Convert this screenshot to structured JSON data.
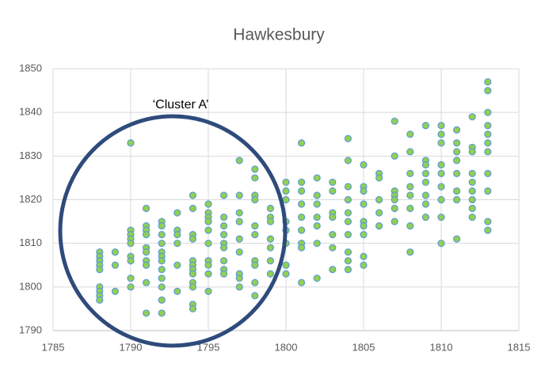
{
  "chart_data": {
    "type": "scatter",
    "title": "Hawkesbury",
    "annotation": "‘Cluster A’",
    "x": [
      1788,
      1788,
      1788,
      1788,
      1788,
      1788,
      1788,
      1788,
      1788,
      1789,
      1789,
      1789,
      1790,
      1790,
      1790,
      1790,
      1790,
      1790,
      1790,
      1790,
      1790,
      1791,
      1791,
      1791,
      1791,
      1791,
      1791,
      1791,
      1791,
      1791,
      1791,
      1792,
      1792,
      1792,
      1792,
      1792,
      1792,
      1792,
      1792,
      1792,
      1792,
      1792,
      1792,
      1793,
      1793,
      1793,
      1793,
      1793,
      1793,
      1794,
      1794,
      1794,
      1794,
      1794,
      1794,
      1794,
      1794,
      1794,
      1794,
      1794,
      1794,
      1795,
      1795,
      1795,
      1795,
      1795,
      1795,
      1795,
      1795,
      1795,
      1795,
      1796,
      1796,
      1796,
      1796,
      1796,
      1796,
      1796,
      1796,
      1796,
      1797,
      1797,
      1797,
      1797,
      1797,
      1797,
      1797,
      1797,
      1797,
      1798,
      1798,
      1798,
      1798,
      1798,
      1798,
      1798,
      1798,
      1798,
      1798,
      1799,
      1799,
      1799,
      1799,
      1799,
      1799,
      1799,
      1800,
      1800,
      1800,
      1800,
      1800,
      1800,
      1800,
      1800,
      1801,
      1801,
      1801,
      1801,
      1801,
      1801,
      1801,
      1801,
      1801,
      1802,
      1802,
      1802,
      1802,
      1802,
      1802,
      1802,
      1803,
      1803,
      1803,
      1803,
      1803,
      1803,
      1803,
      1804,
      1804,
      1804,
      1804,
      1804,
      1804,
      1804,
      1804,
      1804,
      1804,
      1805,
      1805,
      1805,
      1805,
      1805,
      1805,
      1805,
      1805,
      1805,
      1806,
      1806,
      1806,
      1806,
      1806,
      1807,
      1807,
      1807,
      1807,
      1807,
      1807,
      1807,
      1808,
      1808,
      1808,
      1808,
      1808,
      1808,
      1808,
      1808,
      1809,
      1809,
      1809,
      1809,
      1809,
      1809,
      1809,
      1809,
      1810,
      1810,
      1810,
      1810,
      1810,
      1810,
      1810,
      1810,
      1810,
      1811,
      1811,
      1811,
      1811,
      1811,
      1811,
      1811,
      1811,
      1812,
      1812,
      1812,
      1812,
      1812,
      1812,
      1812,
      1812,
      1812,
      1813,
      1813,
      1813,
      1813,
      1813,
      1813,
      1813,
      1813,
      1813,
      1813,
      1813
    ],
    "y": [
      1808,
      1807,
      1806,
      1805,
      1804,
      1800,
      1799,
      1798,
      1797,
      1808,
      1805,
      1799,
      1833,
      1813,
      1812,
      1811,
      1810,
      1807,
      1806,
      1802,
      1800,
      1818,
      1814,
      1813,
      1812,
      1809,
      1808,
      1806,
      1805,
      1801,
      1794,
      1815,
      1814,
      1812,
      1810,
      1808,
      1807,
      1806,
      1804,
      1802,
      1800,
      1797,
      1794,
      1817,
      1813,
      1812,
      1810,
      1805,
      1799,
      1821,
      1818,
      1812,
      1811,
      1806,
      1805,
      1804,
      1803,
      1801,
      1800,
      1796,
      1795,
      1819,
      1817,
      1816,
      1815,
      1813,
      1810,
      1806,
      1805,
      1803,
      1799,
      1821,
      1816,
      1814,
      1812,
      1810,
      1809,
      1806,
      1804,
      1803,
      1829,
      1821,
      1817,
      1815,
      1811,
      1808,
      1803,
      1802,
      1800,
      1827,
      1825,
      1821,
      1820,
      1814,
      1812,
      1806,
      1805,
      1801,
      1798,
      1818,
      1816,
      1815,
      1811,
      1809,
      1806,
      1803,
      1824,
      1822,
      1820,
      1815,
      1813,
      1810,
      1805,
      1803,
      1833,
      1824,
      1822,
      1819,
      1816,
      1813,
      1810,
      1809,
      1801,
      1825,
      1821,
      1819,
      1816,
      1814,
      1810,
      1802,
      1824,
      1822,
      1817,
      1816,
      1812,
      1809,
      1804,
      1834,
      1829,
      1823,
      1820,
      1817,
      1815,
      1812,
      1808,
      1806,
      1804,
      1828,
      1823,
      1822,
      1819,
      1815,
      1814,
      1812,
      1807,
      1805,
      1826,
      1825,
      1820,
      1817,
      1814,
      1838,
      1830,
      1822,
      1821,
      1820,
      1818,
      1815,
      1835,
      1831,
      1826,
      1823,
      1821,
      1818,
      1814,
      1808,
      1837,
      1829,
      1828,
      1826,
      1824,
      1821,
      1819,
      1816,
      1837,
      1835,
      1833,
      1828,
      1826,
      1823,
      1820,
      1816,
      1810,
      1836,
      1833,
      1831,
      1829,
      1826,
      1822,
      1820,
      1811,
      1839,
      1832,
      1831,
      1826,
      1824,
      1822,
      1820,
      1818,
      1816,
      1847,
      1845,
      1840,
      1837,
      1835,
      1833,
      1831,
      1826,
      1822,
      1815,
      1813
    ],
    "color": "#92d050",
    "edge_color": "#5b9bd5",
    "xlim": [
      1785,
      1815
    ],
    "xticks": [
      1785,
      1790,
      1795,
      1800,
      1805,
      1810,
      1815
    ],
    "ylim": [
      1790,
      1850
    ],
    "yticks": [
      1790,
      1800,
      1810,
      1820,
      1830,
      1840,
      1850
    ],
    "grid": true
  }
}
